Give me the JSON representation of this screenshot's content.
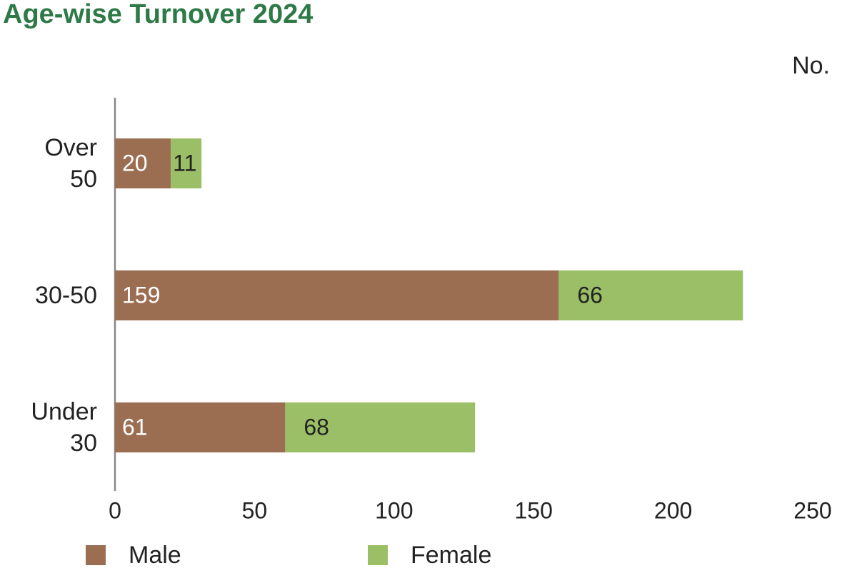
{
  "chart_data": {
    "type": "stacked-barh",
    "title": "Age-wise Turnover 2024",
    "x_label": "No.",
    "categories": [
      "Over 50",
      "30-50",
      "Under 30"
    ],
    "series": [
      {
        "name": "Male",
        "color": "#9b6e52",
        "values": [
          20,
          159,
          61
        ]
      },
      {
        "name": "Female",
        "color": "#9bbf66",
        "values": [
          11,
          66,
          68
        ]
      }
    ],
    "xlim": [
      0,
      250
    ],
    "xticks": [
      0,
      50,
      100,
      150,
      200,
      250
    ]
  }
}
